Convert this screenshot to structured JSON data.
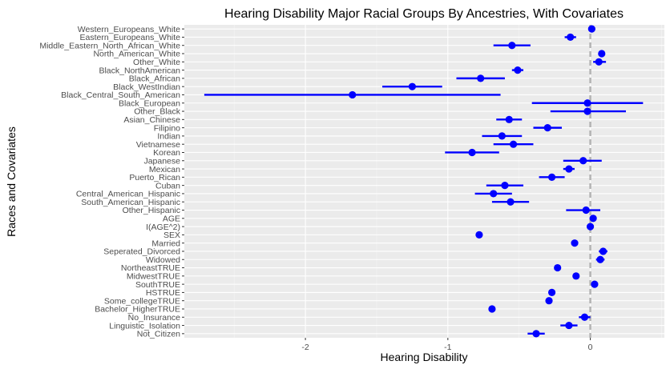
{
  "chart_data": {
    "type": "scatter",
    "title": "Hearing Disability Major Racial Groups By Ancestries, With Covariates",
    "xlabel": "Hearing Disability",
    "ylabel": "Races and Covariates",
    "xlim": [
      -2.85,
      0.52
    ],
    "xticks": [
      -2,
      -1,
      0
    ],
    "xtick_labels": [
      "-2",
      "-1",
      "0"
    ],
    "reference_line": 0,
    "grid": true,
    "point_color": "#0000ff",
    "reference_line_color": "#b3b3b3",
    "panel_background": "#ebebeb",
    "categories": [
      "Western_Europeans_White",
      "Eastern_Europeans_White",
      "Middle_Eastern_North_African_White",
      "North_American_White",
      "Other_White",
      "Black_NorthAmerican",
      "Black_African",
      "Black_WestIndian",
      "Black_Central_South_American",
      "Black_European",
      "Other_Black",
      "Asian_Chinese",
      "Filipino",
      "Indian",
      "Vietnamese",
      "Korean",
      "Japanese",
      "Mexican",
      "Puerto_Rican",
      "Cuban",
      "Central_American_Hispanic",
      "South_American_Hispanic",
      "Other_Hispanic",
      "AGE",
      "I(AGE^2)",
      "SEX",
      "Married",
      "Seperated_Divorced",
      "Widowed",
      "NortheastTRUE",
      "MidwestTRUE",
      "SouthTRUE",
      "HSTRUE",
      "Some_collegeTRUE",
      "Bachelor_HigherTRUE",
      "No_Insurance",
      "Linguistic_Isolation",
      "Not_Citizen"
    ],
    "estimates": [
      0.01,
      -0.14,
      -0.55,
      0.08,
      0.06,
      -0.51,
      -0.77,
      -1.25,
      -1.67,
      -0.02,
      -0.02,
      -0.57,
      -0.3,
      -0.62,
      -0.54,
      -0.83,
      -0.05,
      -0.15,
      -0.27,
      -0.6,
      -0.68,
      -0.56,
      -0.03,
      0.02,
      0.0,
      -0.78,
      -0.11,
      0.09,
      0.07,
      -0.23,
      -0.1,
      0.03,
      -0.27,
      -0.29,
      -0.69,
      -0.04,
      -0.15,
      -0.38
    ],
    "ci_lower": [
      0.0,
      -0.18,
      -0.68,
      0.06,
      0.02,
      -0.55,
      -0.94,
      -1.46,
      -2.71,
      -0.41,
      -0.28,
      -0.66,
      -0.4,
      -0.76,
      -0.68,
      -1.02,
      -0.19,
      -0.19,
      -0.36,
      -0.73,
      -0.81,
      -0.69,
      -0.17,
      0.01,
      -0.01,
      -0.79,
      -0.13,
      0.06,
      0.04,
      -0.24,
      -0.11,
      0.02,
      -0.28,
      -0.3,
      -0.7,
      -0.08,
      -0.21,
      -0.44
    ],
    "ci_upper": [
      0.02,
      -0.1,
      -0.42,
      0.1,
      0.11,
      -0.47,
      -0.6,
      -1.04,
      -0.63,
      0.37,
      0.25,
      -0.48,
      -0.2,
      -0.48,
      -0.4,
      -0.64,
      0.08,
      -0.11,
      -0.18,
      -0.47,
      -0.55,
      -0.43,
      0.07,
      0.03,
      0.01,
      -0.77,
      -0.09,
      0.12,
      0.1,
      -0.22,
      -0.09,
      0.04,
      -0.26,
      -0.28,
      -0.68,
      0.0,
      -0.09,
      -0.32
    ]
  }
}
